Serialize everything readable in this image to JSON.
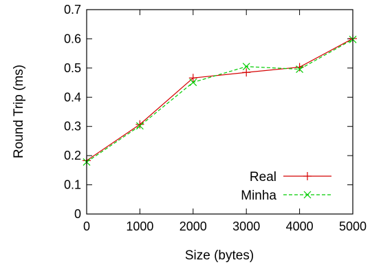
{
  "chart_data": {
    "type": "line",
    "xlabel": "Size (bytes)",
    "ylabel": "Round Trip (ms)",
    "xlim": [
      0,
      5000
    ],
    "ylim": [
      0,
      0.7
    ],
    "x_ticks": [
      "0",
      "1000",
      "2000",
      "3000",
      "4000",
      "5000"
    ],
    "y_ticks": [
      "0",
      "0.1",
      "0.2",
      "0.3",
      "0.4",
      "0.5",
      "0.6",
      "0.7"
    ],
    "grid": false,
    "legend_position": "bottom-right",
    "series": [
      {
        "name": "Real",
        "color": "#d40000",
        "line_style": "solid",
        "marker": "plus",
        "x": [
          0,
          1000,
          2000,
          3000,
          4000,
          5000
        ],
        "y": [
          0.183,
          0.307,
          0.466,
          0.485,
          0.503,
          0.601
        ]
      },
      {
        "name": "Minha",
        "color": "#00cc00",
        "line_style": "dashed",
        "marker": "cross",
        "x": [
          0,
          1000,
          2000,
          3000,
          4000,
          5000
        ],
        "y": [
          0.178,
          0.302,
          0.451,
          0.505,
          0.496,
          0.598
        ]
      }
    ]
  }
}
